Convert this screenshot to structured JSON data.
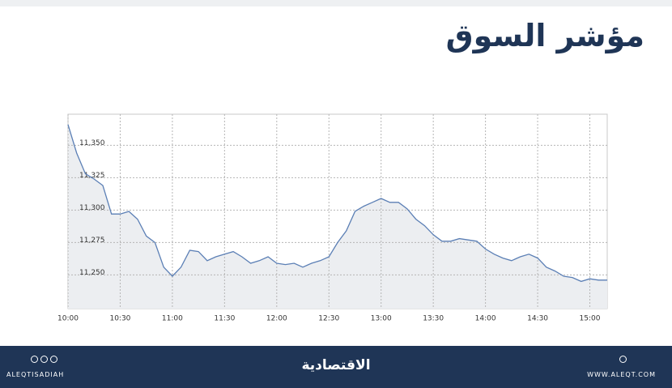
{
  "chart_data": {
    "type": "area",
    "title": "مؤشر السوق",
    "x": [
      "10:00",
      "10:05",
      "10:10",
      "10:15",
      "10:20",
      "10:25",
      "10:30",
      "10:35",
      "10:40",
      "10:45",
      "10:50",
      "10:55",
      "11:00",
      "11:05",
      "11:10",
      "11:15",
      "11:20",
      "11:25",
      "11:30",
      "11:35",
      "11:40",
      "11:45",
      "11:50",
      "11:55",
      "12:00",
      "12:05",
      "12:10",
      "12:15",
      "12:20",
      "12:25",
      "12:30",
      "12:35",
      "12:40",
      "12:45",
      "12:50",
      "12:55",
      "13:00",
      "13:05",
      "13:10",
      "13:15",
      "13:20",
      "13:25",
      "13:30",
      "13:35",
      "13:40",
      "13:45",
      "13:50",
      "13:55",
      "14:00",
      "14:05",
      "14:10",
      "14:15",
      "14:20",
      "14:25",
      "14:30",
      "14:35",
      "14:40",
      "14:45",
      "14:50",
      "14:55",
      "15:00",
      "15:05",
      "15:10"
    ],
    "values": [
      11366,
      11344,
      11328,
      11324,
      11319,
      11297,
      11297,
      11299,
      11293,
      11280,
      11275,
      11256,
      11249,
      11256,
      11269,
      11268,
      11261,
      11264,
      11266,
      11268,
      11264,
      11259,
      11261,
      11264,
      11259,
      11258,
      11259,
      11256,
      11259,
      11261,
      11264,
      11275,
      11284,
      11299,
      11303,
      11306,
      11309,
      11306,
      11306,
      11301,
      11293,
      11288,
      11281,
      11276,
      11276,
      11278,
      11277,
      11276,
      11270,
      11266,
      11263,
      11261,
      11264,
      11266,
      11263,
      11256,
      11253,
      11249,
      11248,
      11245,
      11247,
      11246,
      11246
    ],
    "color": "#5b7fb5",
    "fill": "#eceef1",
    "xlim": [
      "10:00",
      "15:10"
    ],
    "xticks": [
      "10:00",
      "10:30",
      "11:00",
      "11:30",
      "12:00",
      "12:30",
      "13:00",
      "13:30",
      "14:00",
      "14:30",
      "15:00"
    ],
    "ylim": [
      11224,
      11374
    ],
    "yticks": [
      {
        "value": 11250,
        "label": "11,250"
      },
      {
        "value": 11275,
        "label": "11,275"
      },
      {
        "value": 11300,
        "label": "11,300"
      },
      {
        "value": 11325,
        "label": "11,325"
      },
      {
        "value": 11350,
        "label": "11,350"
      }
    ],
    "grid": true
  },
  "footer": {
    "handle": "ALEQTISADIAH",
    "brand": "الاقتصادية",
    "website": "WWW.ALEQT.COM"
  }
}
